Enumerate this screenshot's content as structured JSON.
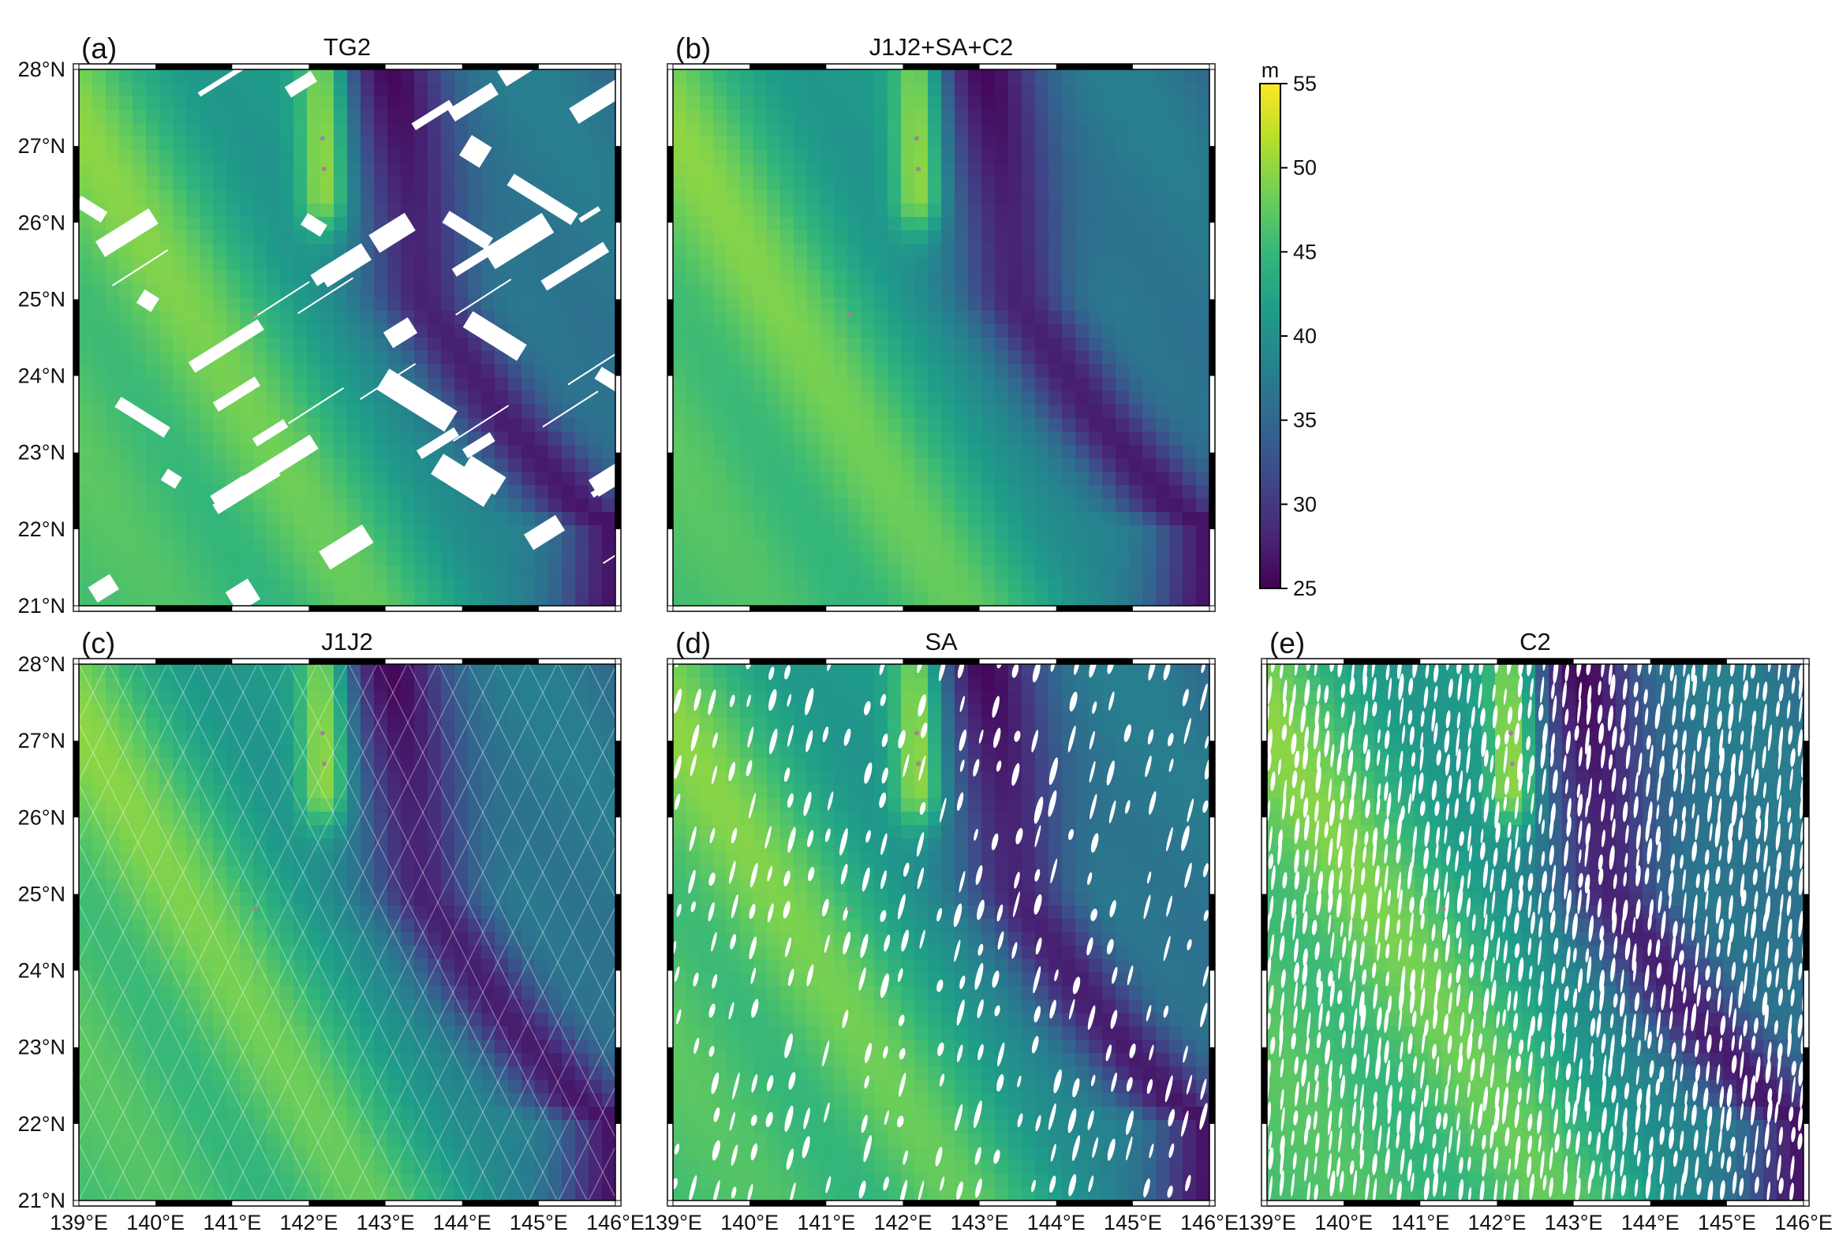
{
  "figure": {
    "unit_label": "m",
    "colormap": "viridis",
    "colors": {
      "low": "#440154",
      "mid": "#21918c",
      "high": "#fde725",
      "gap": "#ffffff",
      "frame": "#000000",
      "land": "#9a8a8a"
    }
  },
  "chart_data": {
    "type": "heatmap",
    "x_axis": {
      "range": [
        139,
        146
      ],
      "ticks": [
        "139°E",
        "140°E",
        "141°E",
        "142°E",
        "143°E",
        "144°E",
        "145°E",
        "146°E"
      ]
    },
    "y_axis": {
      "range": [
        21,
        28
      ],
      "ticks": [
        "21°N",
        "22°N",
        "23°N",
        "24°N",
        "25°N",
        "26°N",
        "27°N",
        "28°N"
      ]
    },
    "colorbar": {
      "label": "m",
      "range": [
        25,
        55
      ],
      "ticks": [
        "25",
        "30",
        "35",
        "40",
        "45",
        "50",
        "55"
      ],
      "placement": "right"
    },
    "panels": [
      {
        "id": "a",
        "label": "(a)",
        "title": "TG2",
        "gap_pattern": "blocks",
        "show_x_ticks": false
      },
      {
        "id": "b",
        "label": "(b)",
        "title": "J1J2+SA+C2",
        "gap_pattern": "none",
        "show_x_ticks": false
      },
      {
        "id": "c",
        "label": "(c)",
        "title": "J1J2",
        "gap_pattern": "diamond-tracks",
        "show_x_ticks": true
      },
      {
        "id": "d",
        "label": "(d)",
        "title": "SA",
        "gap_pattern": "sparse-tracks",
        "show_x_ticks": true
      },
      {
        "id": "e",
        "label": "(e)",
        "title": "C2",
        "gap_pattern": "dense-tracks",
        "show_x_ticks": true
      }
    ],
    "field_features": [
      {
        "type": "seamount-high",
        "lon": 142.2,
        "lat_top": 28.0,
        "lat_bottom": 26.4,
        "approx_value_m": 53
      },
      {
        "type": "trench-low",
        "path_lon": [
          143.0,
          143.5,
          144.5,
          145.5,
          146.0
        ],
        "path_lat": [
          28.0,
          25.0,
          23.5,
          22.3,
          22.0
        ],
        "approx_value_m": 27
      },
      {
        "type": "ridge-high",
        "path_lon": [
          140.5,
          141.5,
          142.3
        ],
        "path_lat": [
          24.5,
          23.0,
          21.5
        ],
        "approx_value_m": 51
      }
    ]
  }
}
